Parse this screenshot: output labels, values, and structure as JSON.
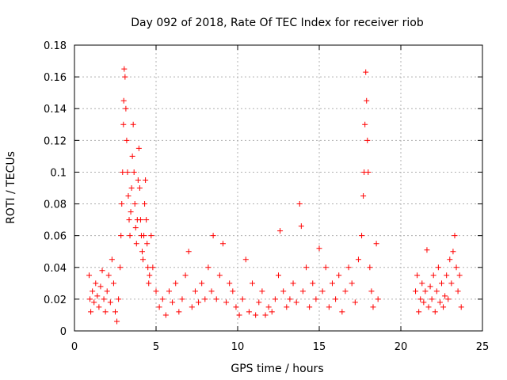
{
  "chart_data": {
    "type": "scatter",
    "title": "Day 092 of 2018, Rate Of TEC Index for receiver riob",
    "xlabel": "GPS time / hours",
    "ylabel": "ROTI / TECUs",
    "xlim": [
      0,
      25
    ],
    "ylim": [
      0,
      0.18
    ],
    "xticks": [
      0,
      5,
      10,
      15,
      20,
      25
    ],
    "yticks": [
      0,
      0.02,
      0.04,
      0.06,
      0.08,
      0.1,
      0.12,
      0.14,
      0.16,
      0.18
    ],
    "xtick_labels": [
      "0",
      "5",
      "10",
      "15",
      "20",
      "25"
    ],
    "ytick_labels": [
      "0",
      "0.02",
      "0.04",
      "0.06",
      "0.08",
      "0.1",
      "0.12",
      "0.14",
      "0.16",
      "0.18"
    ],
    "grid": true,
    "marker": "+",
    "color": "#ff0000",
    "series": [
      {
        "points": [
          [
            0.9,
            0.035
          ],
          [
            0.95,
            0.02
          ],
          [
            1.0,
            0.012
          ],
          [
            1.1,
            0.025
          ],
          [
            1.2,
            0.018
          ],
          [
            1.3,
            0.03
          ],
          [
            1.4,
            0.022
          ],
          [
            1.5,
            0.015
          ],
          [
            1.6,
            0.028
          ],
          [
            1.7,
            0.038
          ],
          [
            1.8,
            0.02
          ],
          [
            1.9,
            0.012
          ],
          [
            2.0,
            0.025
          ],
          [
            2.1,
            0.035
          ],
          [
            2.2,
            0.018
          ],
          [
            2.3,
            0.045
          ],
          [
            2.4,
            0.03
          ],
          [
            2.5,
            0.012
          ],
          [
            2.6,
            0.006
          ],
          [
            2.7,
            0.02
          ],
          [
            2.8,
            0.04
          ],
          [
            2.85,
            0.06
          ],
          [
            2.9,
            0.08
          ],
          [
            2.95,
            0.1
          ],
          [
            3.0,
            0.13
          ],
          [
            3.02,
            0.145
          ],
          [
            3.05,
            0.165
          ],
          [
            3.1,
            0.16
          ],
          [
            3.15,
            0.14
          ],
          [
            3.2,
            0.12
          ],
          [
            3.25,
            0.1
          ],
          [
            3.3,
            0.085
          ],
          [
            3.35,
            0.07
          ],
          [
            3.4,
            0.06
          ],
          [
            3.45,
            0.075
          ],
          [
            3.5,
            0.09
          ],
          [
            3.55,
            0.11
          ],
          [
            3.6,
            0.13
          ],
          [
            3.65,
            0.1
          ],
          [
            3.7,
            0.08
          ],
          [
            3.75,
            0.065
          ],
          [
            3.8,
            0.055
          ],
          [
            3.85,
            0.07
          ],
          [
            3.9,
            0.095
          ],
          [
            3.95,
            0.115
          ],
          [
            4.0,
            0.09
          ],
          [
            4.05,
            0.07
          ],
          [
            4.1,
            0.06
          ],
          [
            4.15,
            0.05
          ],
          [
            4.2,
            0.045
          ],
          [
            4.25,
            0.06
          ],
          [
            4.3,
            0.08
          ],
          [
            4.35,
            0.095
          ],
          [
            4.4,
            0.07
          ],
          [
            4.45,
            0.055
          ],
          [
            4.5,
            0.04
          ],
          [
            4.55,
            0.03
          ],
          [
            4.6,
            0.035
          ],
          [
            4.7,
            0.06
          ],
          [
            4.8,
            0.04
          ],
          [
            5.0,
            0.025
          ],
          [
            5.2,
            0.015
          ],
          [
            5.4,
            0.02
          ],
          [
            5.6,
            0.01
          ],
          [
            5.8,
            0.025
          ],
          [
            6.0,
            0.018
          ],
          [
            6.2,
            0.03
          ],
          [
            6.4,
            0.012
          ],
          [
            6.6,
            0.02
          ],
          [
            6.8,
            0.035
          ],
          [
            7.0,
            0.05
          ],
          [
            7.2,
            0.015
          ],
          [
            7.4,
            0.025
          ],
          [
            7.6,
            0.018
          ],
          [
            7.8,
            0.03
          ],
          [
            8.0,
            0.02
          ],
          [
            8.2,
            0.04
          ],
          [
            8.4,
            0.025
          ],
          [
            8.5,
            0.06
          ],
          [
            8.7,
            0.02
          ],
          [
            8.9,
            0.035
          ],
          [
            9.1,
            0.055
          ],
          [
            9.3,
            0.018
          ],
          [
            9.5,
            0.03
          ],
          [
            9.7,
            0.025
          ],
          [
            9.9,
            0.015
          ],
          [
            10.1,
            0.01
          ],
          [
            10.3,
            0.02
          ],
          [
            10.5,
            0.045
          ],
          [
            10.7,
            0.012
          ],
          [
            10.9,
            0.03
          ],
          [
            11.1,
            0.01
          ],
          [
            11.3,
            0.018
          ],
          [
            11.5,
            0.025
          ],
          [
            11.7,
            0.01
          ],
          [
            11.9,
            0.015
          ],
          [
            12.1,
            0.012
          ],
          [
            12.3,
            0.02
          ],
          [
            12.5,
            0.035
          ],
          [
            12.6,
            0.063
          ],
          [
            12.8,
            0.025
          ],
          [
            13.0,
            0.015
          ],
          [
            13.2,
            0.02
          ],
          [
            13.4,
            0.03
          ],
          [
            13.6,
            0.018
          ],
          [
            13.8,
            0.08
          ],
          [
            13.9,
            0.066
          ],
          [
            14.0,
            0.025
          ],
          [
            14.2,
            0.04
          ],
          [
            14.4,
            0.015
          ],
          [
            14.6,
            0.03
          ],
          [
            14.8,
            0.02
          ],
          [
            15.0,
            0.052
          ],
          [
            15.2,
            0.025
          ],
          [
            15.4,
            0.04
          ],
          [
            15.6,
            0.015
          ],
          [
            15.8,
            0.03
          ],
          [
            16.0,
            0.02
          ],
          [
            16.2,
            0.035
          ],
          [
            16.4,
            0.012
          ],
          [
            16.6,
            0.025
          ],
          [
            16.8,
            0.04
          ],
          [
            17.0,
            0.03
          ],
          [
            17.2,
            0.018
          ],
          [
            17.4,
            0.045
          ],
          [
            17.6,
            0.06
          ],
          [
            17.7,
            0.085
          ],
          [
            17.75,
            0.1
          ],
          [
            17.8,
            0.13
          ],
          [
            17.85,
            0.163
          ],
          [
            17.9,
            0.145
          ],
          [
            17.95,
            0.12
          ],
          [
            18.0,
            0.1
          ],
          [
            18.1,
            0.04
          ],
          [
            18.2,
            0.025
          ],
          [
            18.3,
            0.015
          ],
          [
            18.5,
            0.055
          ],
          [
            18.6,
            0.02
          ],
          [
            20.9,
            0.025
          ],
          [
            21.0,
            0.035
          ],
          [
            21.1,
            0.012
          ],
          [
            21.2,
            0.02
          ],
          [
            21.3,
            0.03
          ],
          [
            21.4,
            0.018
          ],
          [
            21.5,
            0.025
          ],
          [
            21.6,
            0.051
          ],
          [
            21.7,
            0.015
          ],
          [
            21.8,
            0.028
          ],
          [
            21.9,
            0.02
          ],
          [
            22.0,
            0.035
          ],
          [
            22.1,
            0.012
          ],
          [
            22.2,
            0.025
          ],
          [
            22.3,
            0.04
          ],
          [
            22.4,
            0.018
          ],
          [
            22.5,
            0.03
          ],
          [
            22.6,
            0.015
          ],
          [
            22.7,
            0.022
          ],
          [
            22.8,
            0.035
          ],
          [
            22.9,
            0.02
          ],
          [
            23.0,
            0.045
          ],
          [
            23.1,
            0.03
          ],
          [
            23.2,
            0.05
          ],
          [
            23.3,
            0.06
          ],
          [
            23.4,
            0.04
          ],
          [
            23.5,
            0.025
          ],
          [
            23.6,
            0.035
          ],
          [
            23.7,
            0.015
          ]
        ]
      }
    ]
  }
}
